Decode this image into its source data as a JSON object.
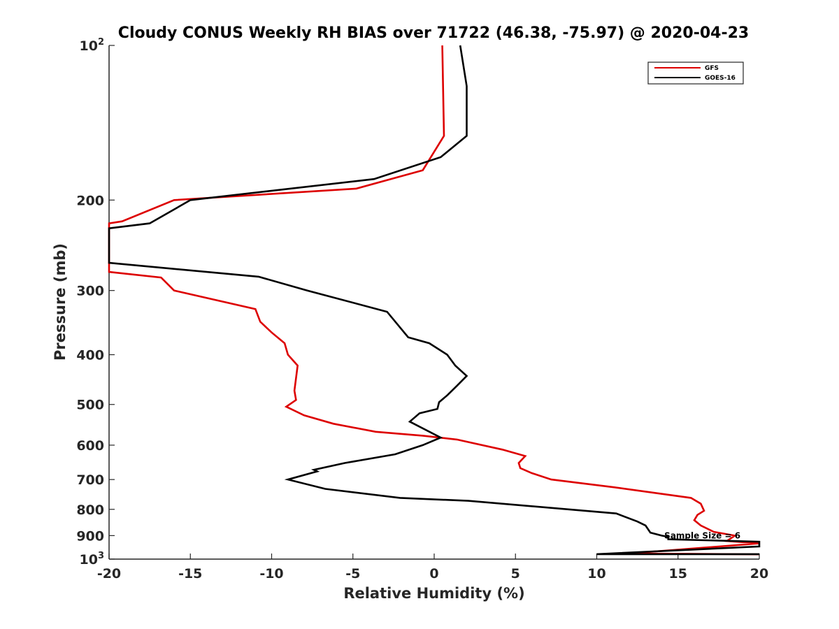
{
  "chart_data": {
    "type": "line",
    "title": "Cloudy CONUS Weekly RH BIAS over 71722 (46.38, -75.97) @ 2020-04-23",
    "xlabel": "Relative Humidity (%)",
    "ylabel": "Pressure (mb)",
    "xlim": [
      -20,
      20
    ],
    "ylim": [
      100,
      1000
    ],
    "yscale": "log",
    "y_reversed": true,
    "x_ticks": [
      -20,
      -15,
      -10,
      -5,
      0,
      5,
      10,
      15,
      20
    ],
    "x_tick_labels": [
      "-20",
      "-15",
      "-10",
      "-5",
      "0",
      "5",
      "10",
      "15",
      "20"
    ],
    "y_ticks": [
      100,
      200,
      300,
      400,
      500,
      600,
      700,
      800,
      900,
      1000
    ],
    "y_tick_labels": [
      {
        "base": "10",
        "exp": "2"
      },
      {
        "base": "200",
        "exp": ""
      },
      {
        "base": "300",
        "exp": ""
      },
      {
        "base": "400",
        "exp": ""
      },
      {
        "base": "500",
        "exp": ""
      },
      {
        "base": "600",
        "exp": ""
      },
      {
        "base": "700",
        "exp": ""
      },
      {
        "base": "800",
        "exp": ""
      },
      {
        "base": "900",
        "exp": ""
      },
      {
        "base": "10",
        "exp": "3"
      }
    ],
    "legend": {
      "position": "top-right",
      "entries": [
        "GFS",
        "GOES-16"
      ]
    },
    "annotation": "Sample Size = 6",
    "annotation_at": {
      "x": 16.5,
      "p": 900
    },
    "series": [
      {
        "name": "GFS",
        "color": "#dd0000",
        "points": [
          [
            0.5,
            100
          ],
          [
            0.6,
            150
          ],
          [
            -0.7,
            175
          ],
          [
            -4.8,
            190
          ],
          [
            -16.0,
            200
          ],
          [
            -19.2,
            220
          ],
          [
            -20.0,
            222
          ],
          [
            -20.0,
            276
          ],
          [
            -16.8,
            283
          ],
          [
            -16.0,
            300
          ],
          [
            -11.0,
            326
          ],
          [
            -10.7,
            345
          ],
          [
            -10.0,
            362
          ],
          [
            -9.2,
            380
          ],
          [
            -9.0,
            400
          ],
          [
            -8.4,
            420
          ],
          [
            -8.6,
            470
          ],
          [
            -8.5,
            490
          ],
          [
            -9.1,
            505
          ],
          [
            -8.0,
            525
          ],
          [
            -6.2,
            545
          ],
          [
            -3.6,
            565
          ],
          [
            -0.7,
            575
          ],
          [
            1.4,
            585
          ],
          [
            4.2,
            612
          ],
          [
            5.6,
            630
          ],
          [
            5.2,
            650
          ],
          [
            5.3,
            665
          ],
          [
            6.0,
            680
          ],
          [
            7.2,
            700
          ],
          [
            11.1,
            725
          ],
          [
            15.8,
            760
          ],
          [
            16.4,
            780
          ],
          [
            16.6,
            805
          ],
          [
            16.2,
            820
          ],
          [
            16.0,
            840
          ],
          [
            16.4,
            860
          ],
          [
            17.2,
            885
          ],
          [
            18.5,
            900
          ],
          [
            18.0,
            922
          ],
          [
            20.0,
            932
          ],
          [
            12.0,
            975
          ],
          [
            20.0,
            979
          ]
        ]
      },
      {
        "name": "GOES-16",
        "color": "#000000",
        "points": [
          [
            1.6,
            100
          ],
          [
            2.0,
            120
          ],
          [
            2.0,
            150
          ],
          [
            0.4,
            165
          ],
          [
            -3.7,
            182
          ],
          [
            -15.0,
            200
          ],
          [
            -17.5,
            222
          ],
          [
            -20.0,
            227
          ],
          [
            -20.0,
            265
          ],
          [
            -10.8,
            282
          ],
          [
            -7.8,
            300
          ],
          [
            -2.9,
            330
          ],
          [
            -1.6,
            370
          ],
          [
            -0.3,
            380
          ],
          [
            0.8,
            400
          ],
          [
            1.3,
            420
          ],
          [
            2.0,
            440
          ],
          [
            1.4,
            460
          ],
          [
            0.8,
            480
          ],
          [
            0.3,
            495
          ],
          [
            0.2,
            510
          ],
          [
            -0.9,
            520
          ],
          [
            -1.5,
            540
          ],
          [
            0.4,
            580
          ],
          [
            -0.7,
            600
          ],
          [
            -2.4,
            625
          ],
          [
            -5.5,
            650
          ],
          [
            -7.4,
            670
          ],
          [
            -7.2,
            675
          ],
          [
            -9.0,
            700
          ],
          [
            -6.7,
            730
          ],
          [
            -2.1,
            760
          ],
          [
            2.1,
            770
          ],
          [
            11.2,
            815
          ],
          [
            12.5,
            845
          ],
          [
            13.0,
            860
          ],
          [
            13.3,
            888
          ],
          [
            14.0,
            900
          ],
          [
            14.4,
            905
          ],
          [
            14.4,
            915
          ],
          [
            20.0,
            925
          ],
          [
            20.0,
            935
          ],
          [
            20.0,
            945
          ],
          [
            10.0,
            978
          ],
          [
            20.0,
            978
          ]
        ]
      }
    ]
  }
}
